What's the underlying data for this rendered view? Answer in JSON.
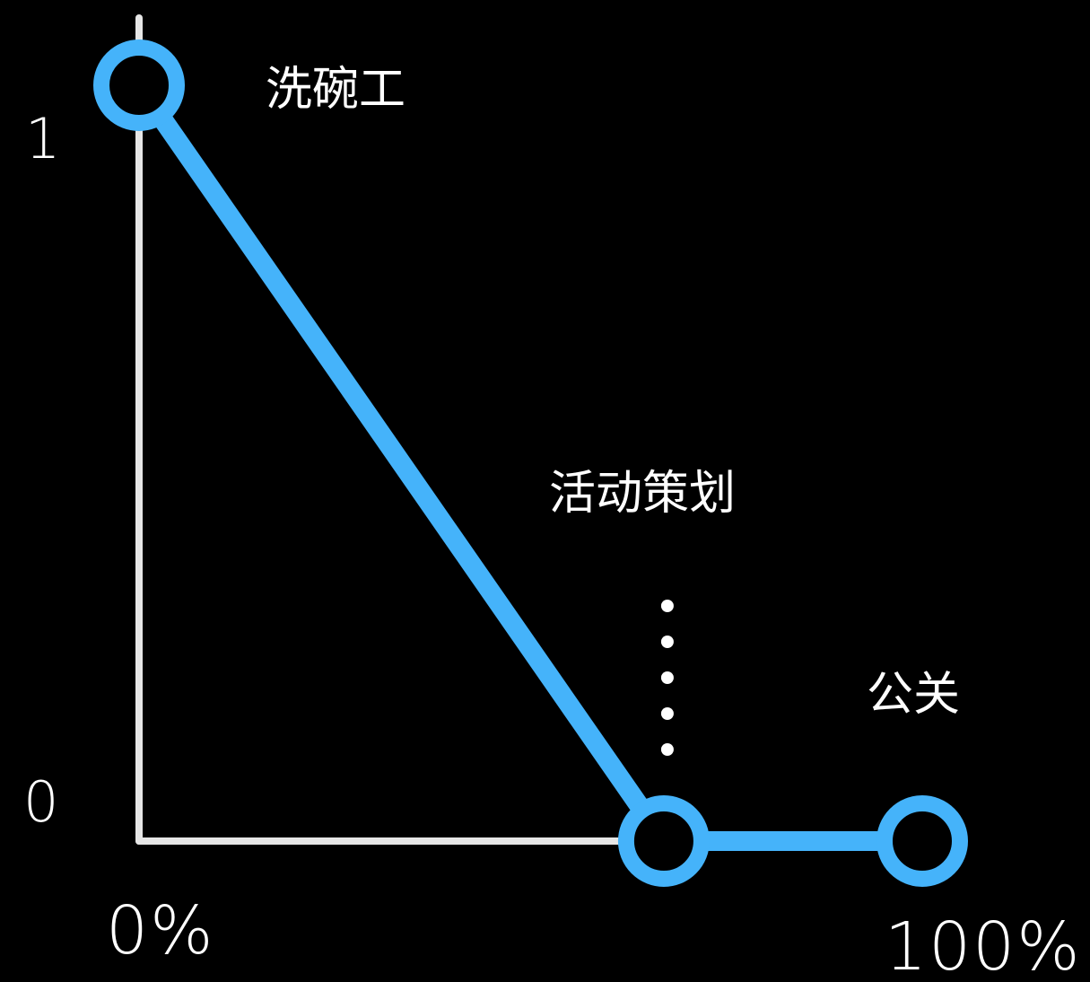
{
  "chart_data": {
    "type": "line",
    "title": "",
    "xlabel": "",
    "ylabel": "",
    "xlim": [
      0,
      100
    ],
    "ylim": [
      0,
      1
    ],
    "x_tick_labels": [
      "0%",
      "100%"
    ],
    "y_tick_labels": [
      "1",
      "0"
    ],
    "series": [
      {
        "points": [
          {
            "x": 0,
            "y": 1,
            "label": "洗碗工"
          },
          {
            "x": 100,
            "y": 0,
            "label": "公关"
          }
        ],
        "line": [
          {
            "x": 0,
            "y": 1
          },
          {
            "x": 67,
            "y": 0
          },
          {
            "x": 100,
            "y": 0
          }
        ],
        "annotated_point": {
          "x": 67,
          "y": 0,
          "label": "活动策划"
        }
      }
    ],
    "colors": {
      "line": "#45b3fa",
      "axis": "#e6e6e6",
      "text": "#ffffff",
      "background": "#000000"
    },
    "grid": false,
    "legend": "none"
  }
}
